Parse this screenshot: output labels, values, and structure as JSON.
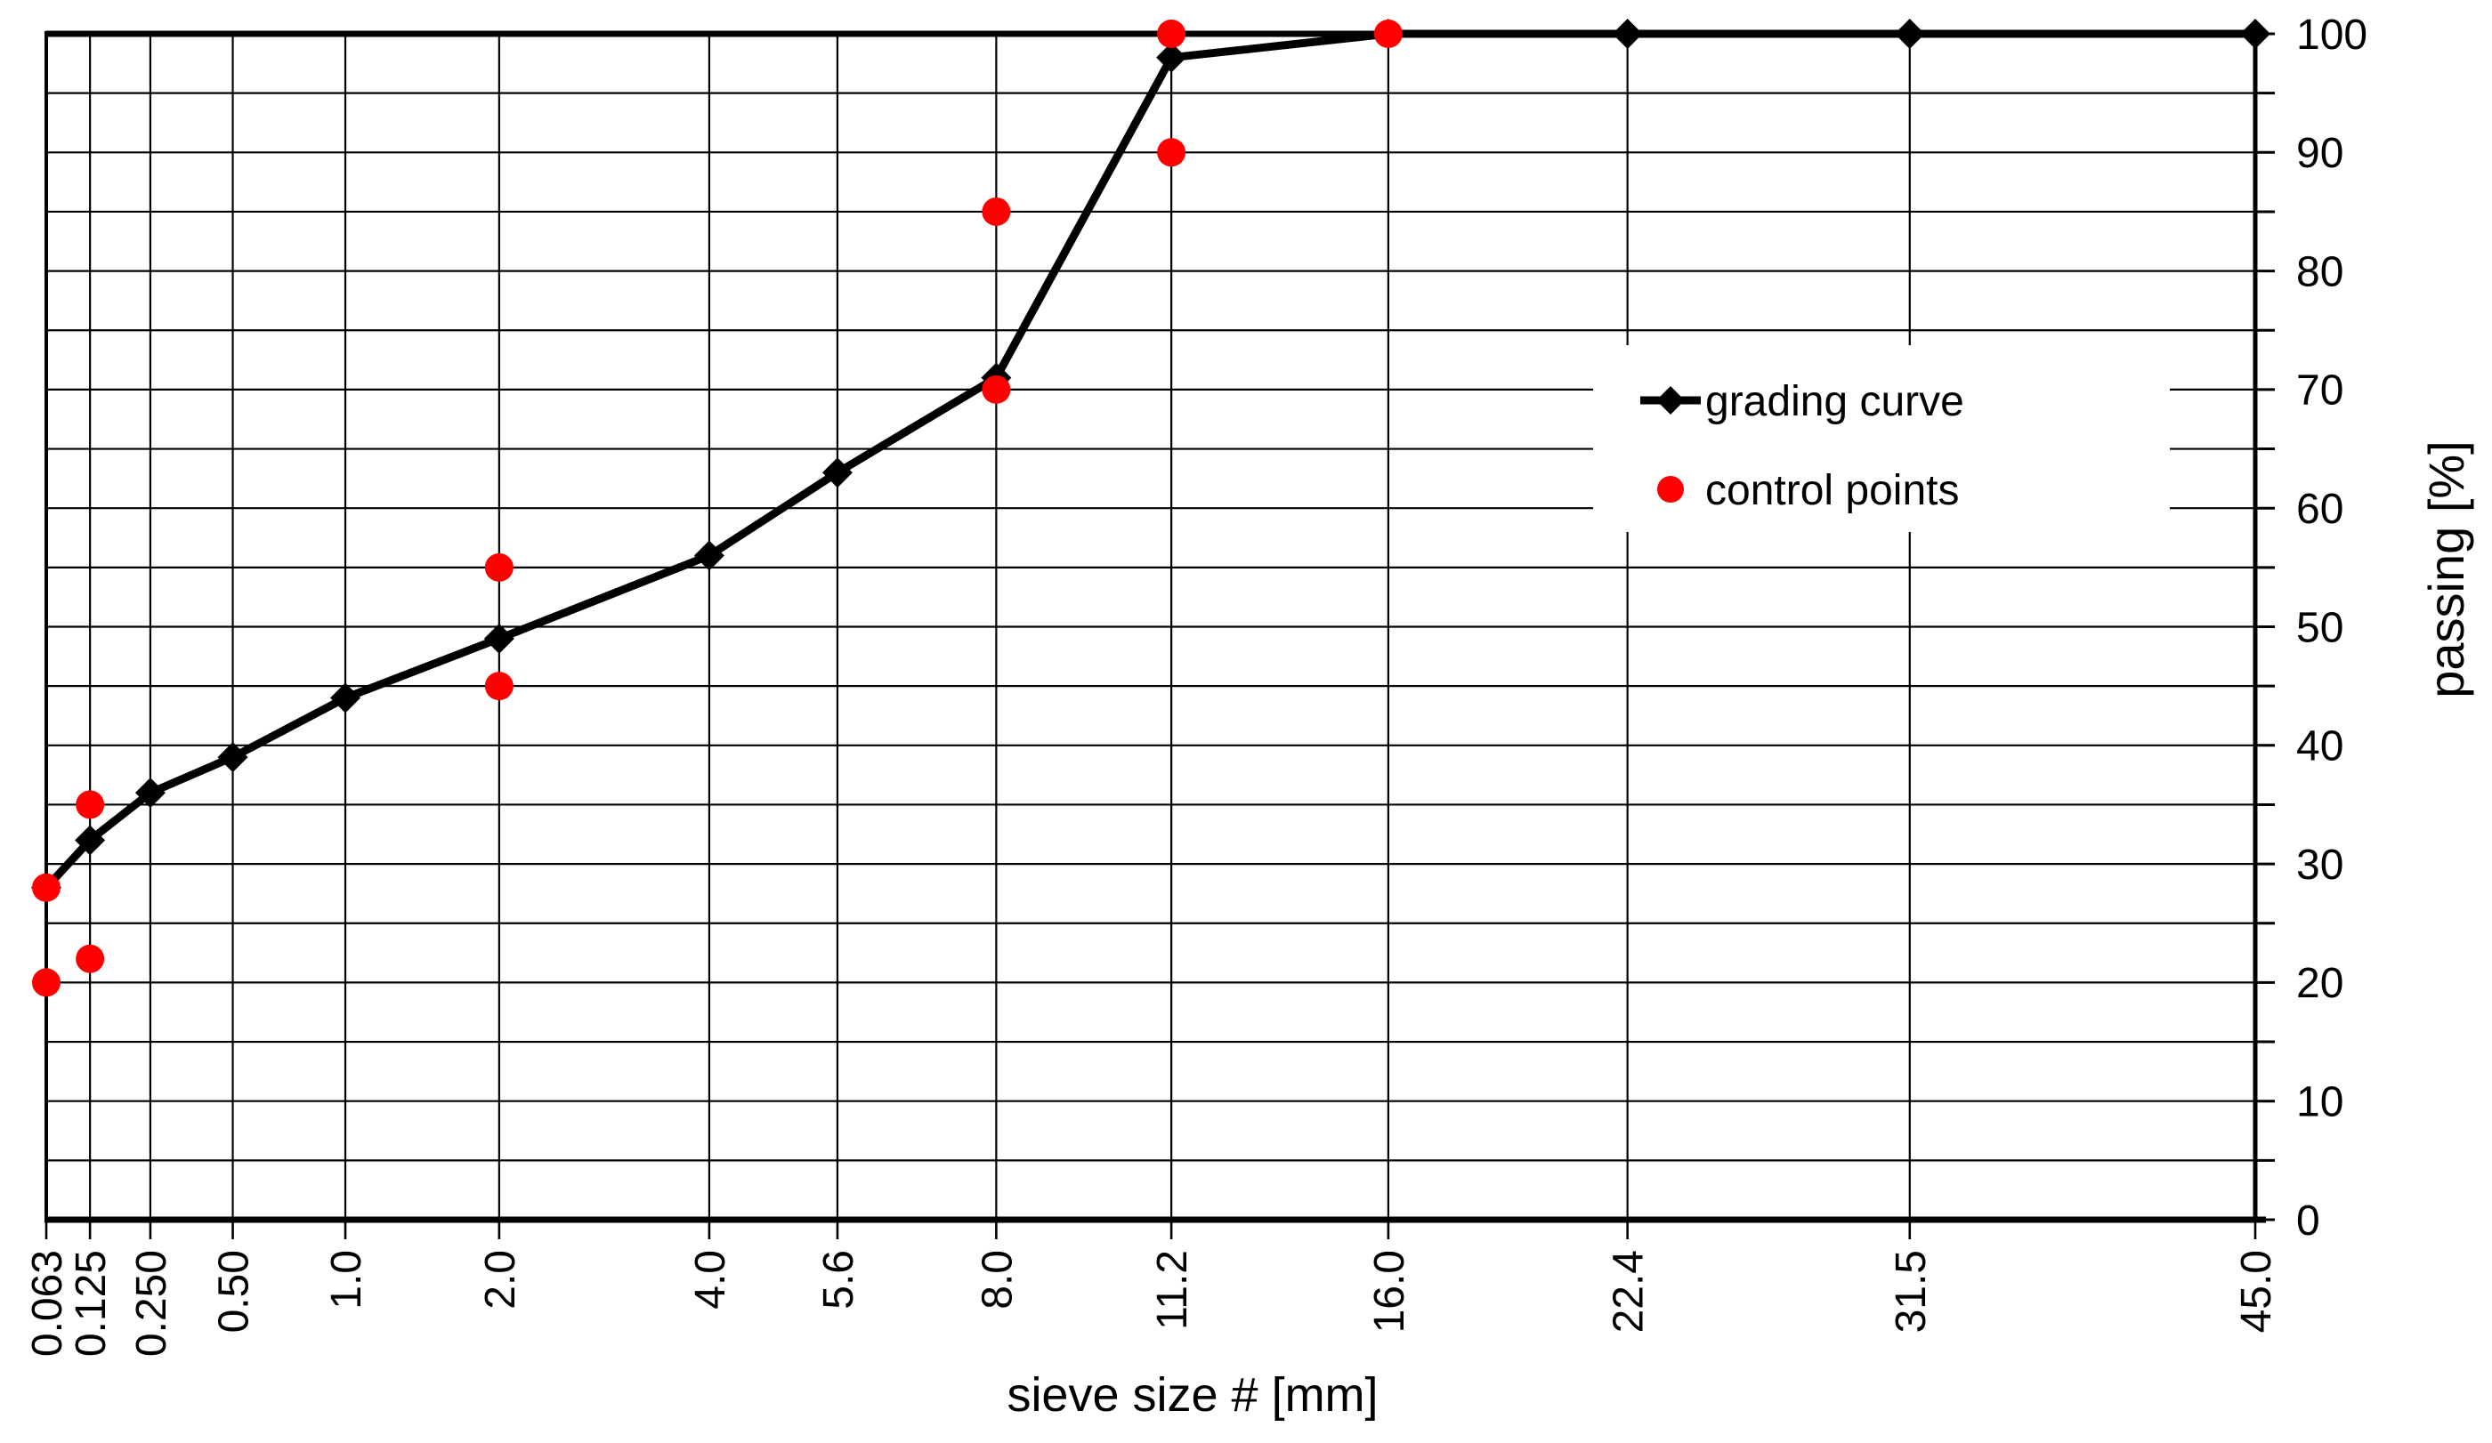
{
  "chart_data": {
    "type": "line",
    "title": "",
    "xlabel": "sieve size # [mm]",
    "ylabel": "passing [%]",
    "x_scale": {
      "type": "power",
      "exponent": 0.45,
      "min": 0.063,
      "max": 45.0
    },
    "x_ticks": [
      0.063,
      0.125,
      0.25,
      0.5,
      1.0,
      2.0,
      4.0,
      5.6,
      8.0,
      11.2,
      16.0,
      22.4,
      31.5,
      45.0
    ],
    "x_tick_labels": [
      "0.063",
      "0.125",
      "0.250",
      "0.50",
      "1.0",
      "2.0",
      "4.0",
      "5.6",
      "8.0",
      "11.2",
      "16.0",
      "22.4",
      "31.5",
      "45.0"
    ],
    "ylim": [
      0,
      100
    ],
    "y_major_step": 10,
    "y_minor_step": 5,
    "y_tick_labels": [
      "0",
      "10",
      "20",
      "30",
      "40",
      "50",
      "60",
      "70",
      "80",
      "90",
      "100"
    ],
    "grid": true,
    "legend": {
      "position": "right-center",
      "entries": [
        "grading curve",
        "control points"
      ]
    },
    "series": [
      {
        "name": "grading curve",
        "type": "line",
        "marker": "diamond",
        "color": "#000000",
        "points": [
          [
            0.063,
            28
          ],
          [
            0.125,
            32
          ],
          [
            0.25,
            36
          ],
          [
            0.5,
            39
          ],
          [
            1.0,
            44
          ],
          [
            2.0,
            49
          ],
          [
            4.0,
            56
          ],
          [
            5.6,
            63
          ],
          [
            8.0,
            71
          ],
          [
            11.2,
            98
          ],
          [
            16.0,
            100
          ],
          [
            22.4,
            100
          ],
          [
            31.5,
            100
          ],
          [
            45.0,
            100
          ]
        ]
      },
      {
        "name": "control points",
        "type": "scatter",
        "marker": "circle",
        "color": "#ff0000",
        "points": [
          [
            0.063,
            20
          ],
          [
            0.063,
            28
          ],
          [
            0.125,
            22
          ],
          [
            0.125,
            35
          ],
          [
            2.0,
            45
          ],
          [
            2.0,
            55
          ],
          [
            8.0,
            70
          ],
          [
            8.0,
            85
          ],
          [
            11.2,
            90
          ],
          [
            11.2,
            100
          ],
          [
            16.0,
            100
          ]
        ]
      }
    ],
    "colors": {
      "curve": "#000000",
      "control_points": "#ff0000",
      "grid": "#000000",
      "background": "#ffffff"
    }
  }
}
